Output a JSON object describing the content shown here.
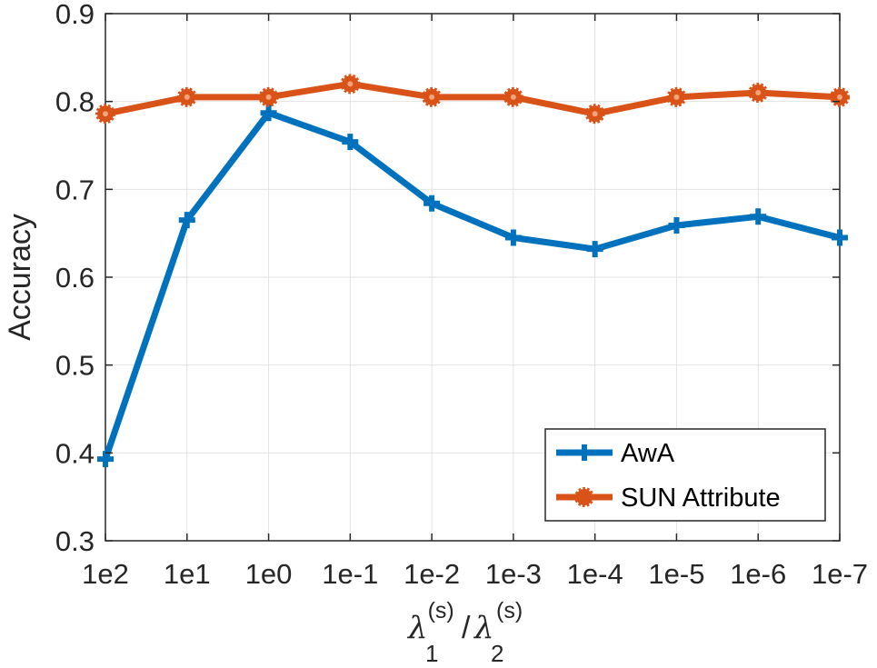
{
  "chart_data": {
    "type": "line",
    "title": "",
    "xlabel": {
      "symbol": "λ",
      "num_sub": "1",
      "den_sub": "2",
      "sup": "(s)",
      "slash": "/"
    },
    "ylabel": "Accuracy",
    "categories": [
      "1e2",
      "1e1",
      "1e0",
      "1e-1",
      "1e-2",
      "1e-3",
      "1e-4",
      "1e-5",
      "1e-6",
      "1e-7"
    ],
    "ylim": [
      0.3,
      0.9
    ],
    "yticks": [
      "0.3",
      "0.4",
      "0.5",
      "0.6",
      "0.7",
      "0.8",
      "0.9"
    ],
    "grid": true,
    "legend_position": "bottom-right",
    "series": [
      {
        "name": "AwA",
        "color": "#0072BD",
        "marker": "plus",
        "values": [
          0.393,
          0.665,
          0.787,
          0.754,
          0.684,
          0.645,
          0.632,
          0.659,
          0.669,
          0.645
        ]
      },
      {
        "name": "SUN Attribute",
        "color": "#D95319",
        "marker": "circle-dotted",
        "values": [
          0.786,
          0.805,
          0.805,
          0.82,
          0.805,
          0.805,
          0.786,
          0.805,
          0.81,
          0.805
        ]
      }
    ]
  }
}
